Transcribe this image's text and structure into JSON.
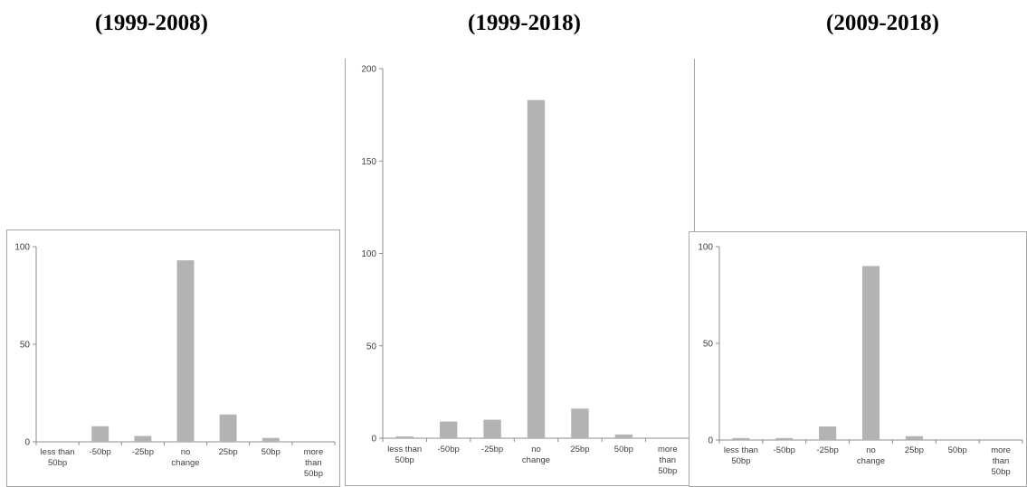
{
  "titles": {
    "left": "(1999-2008)",
    "middle": "(1999-2018)",
    "right": "(2009-2018)"
  },
  "colors": {
    "bar": "#b3b3b3",
    "axis": "#8c8c8c",
    "frame": "#a6a6a6",
    "text": "#404040"
  },
  "chart_data": [
    {
      "type": "bar",
      "title": "(1999-2008)",
      "xlabel": "",
      "ylabel": "",
      "categories": [
        [
          "less than",
          "50bp"
        ],
        [
          "-50bp"
        ],
        [
          "-25bp"
        ],
        [
          "no",
          "change"
        ],
        [
          "25bp"
        ],
        [
          "50bp"
        ],
        [
          "more",
          "than",
          "50bp"
        ]
      ],
      "values": [
        0,
        8,
        3,
        93,
        14,
        2,
        0
      ],
      "ylim": [
        0,
        100
      ],
      "yticks": [
        0,
        50,
        100
      ],
      "grid": false,
      "legend": "none"
    },
    {
      "type": "bar",
      "title": "(1999-2018)",
      "xlabel": "",
      "ylabel": "",
      "categories": [
        [
          "less than",
          "50bp"
        ],
        [
          "-50bp"
        ],
        [
          "-25bp"
        ],
        [
          "no",
          "change"
        ],
        [
          "25bp"
        ],
        [
          "50bp"
        ],
        [
          "more",
          "than",
          "50bp"
        ]
      ],
      "values": [
        1,
        9,
        10,
        183,
        16,
        2,
        0
      ],
      "ylim": [
        0,
        200
      ],
      "yticks": [
        0,
        50,
        100,
        150,
        200
      ],
      "grid": false,
      "legend": "none"
    },
    {
      "type": "bar",
      "title": "(2009-2018)",
      "xlabel": "",
      "ylabel": "",
      "categories": [
        [
          "less than",
          "50bp"
        ],
        [
          "-50bp"
        ],
        [
          "-25bp"
        ],
        [
          "no",
          "change"
        ],
        [
          "25bp"
        ],
        [
          "50bp"
        ],
        [
          "more",
          "than",
          "50bp"
        ]
      ],
      "values": [
        1,
        1,
        7,
        90,
        2,
        0,
        0
      ],
      "ylim": [
        0,
        100
      ],
      "yticks": [
        0,
        50,
        100
      ],
      "grid": false,
      "legend": "none"
    }
  ]
}
